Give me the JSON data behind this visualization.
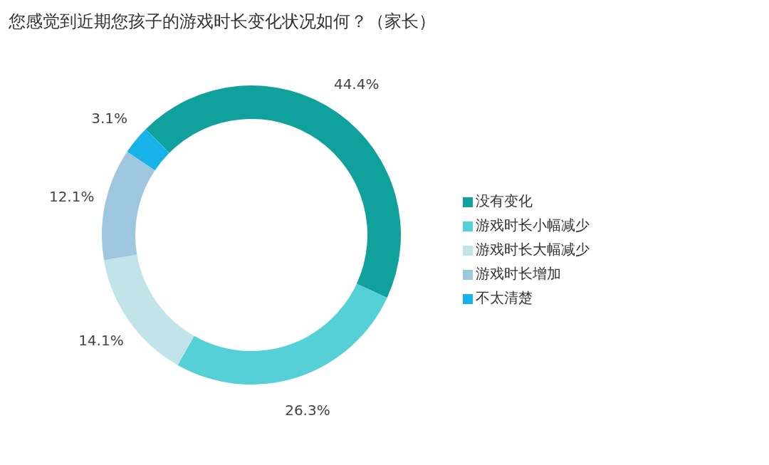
{
  "chart_data": {
    "type": "donut",
    "title": "您感觉到近期您孩子的游戏时长变化状况如何？（家长）",
    "categories": [
      "没有变化",
      "游戏时长小幅减少",
      "游戏时长大幅减少",
      "游戏时长增加",
      "不太清楚"
    ],
    "values": [
      44.4,
      26.3,
      14.1,
      12.1,
      3.1
    ],
    "value_labels": [
      "44.4%",
      "26.3%",
      "14.1%",
      "12.1%",
      "3.1%"
    ],
    "colors": [
      "#11a19c",
      "#55d0d6",
      "#c3e3ea",
      "#9ec6de",
      "#16b2e8"
    ],
    "legend": "right"
  }
}
